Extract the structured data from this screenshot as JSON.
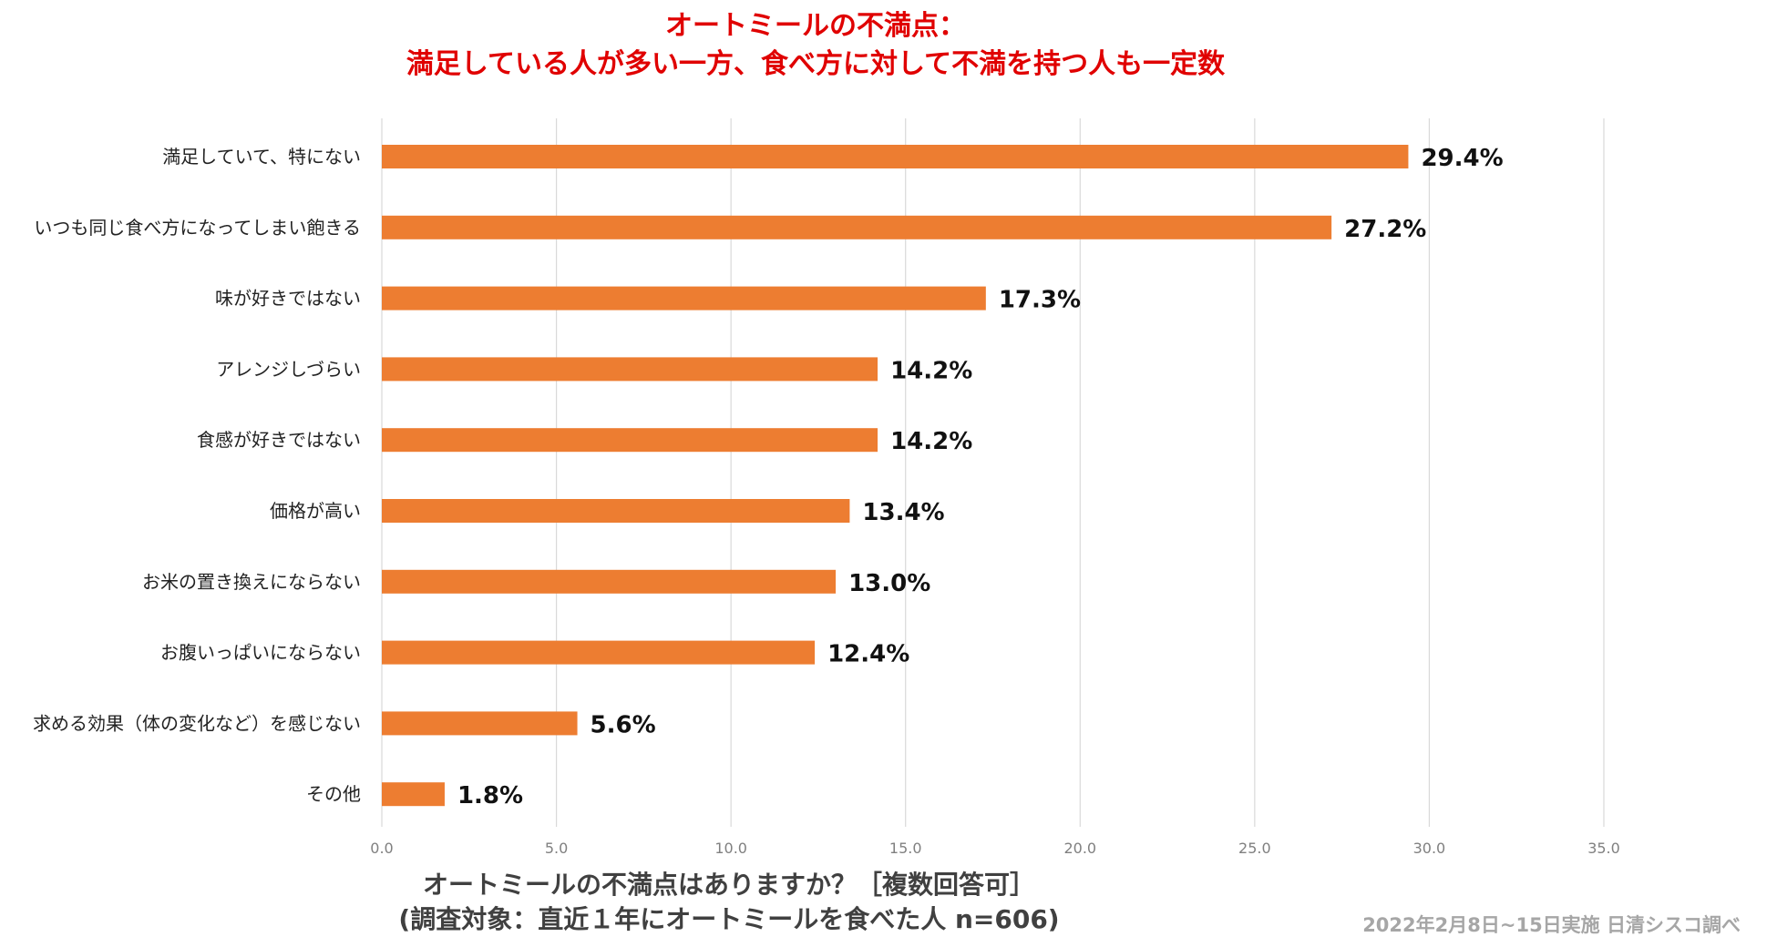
{
  "header": {
    "title_line1": "オートミールの不満点：",
    "title_line2": "満足している人が多い一方、食べ方に対して不満を持つ人も一定数"
  },
  "footer": {
    "question_line1": "オートミールの不満点はありますか？［複数回答可］",
    "question_line2": "(調査対象：直近１年にオートミールを食べた人 n=606)",
    "credit": "2022年2月8日~15日実施 日清シスコ調べ"
  },
  "chart_data": {
    "type": "bar",
    "orientation": "horizontal",
    "categories": [
      "満足していて、特にない",
      "いつも同じ食べ方になってしまい飽きる",
      "味が好きではない",
      "アレンジしづらい",
      "食感が好きではない",
      "価格が高い",
      "お米の置き換えにならない",
      "お腹いっぱいにならない",
      "求める効果（体の変化など）を感じない",
      "その他"
    ],
    "values": [
      29.4,
      27.2,
      17.3,
      14.2,
      14.2,
      13.4,
      13.0,
      12.4,
      5.6,
      1.8
    ],
    "value_labels": [
      "29.4%",
      "27.2%",
      "17.3%",
      "14.2%",
      "14.2%",
      "13.4%",
      "13.0%",
      "12.4%",
      "5.6%",
      "1.8%"
    ],
    "xlim": [
      0,
      35
    ],
    "ticks": [
      "0.0",
      "5.0",
      "10.0",
      "15.0",
      "20.0",
      "25.0",
      "30.0",
      "35.0"
    ],
    "grid": true,
    "bar_color": "#ed7d31",
    "title_color": "#e00000"
  }
}
